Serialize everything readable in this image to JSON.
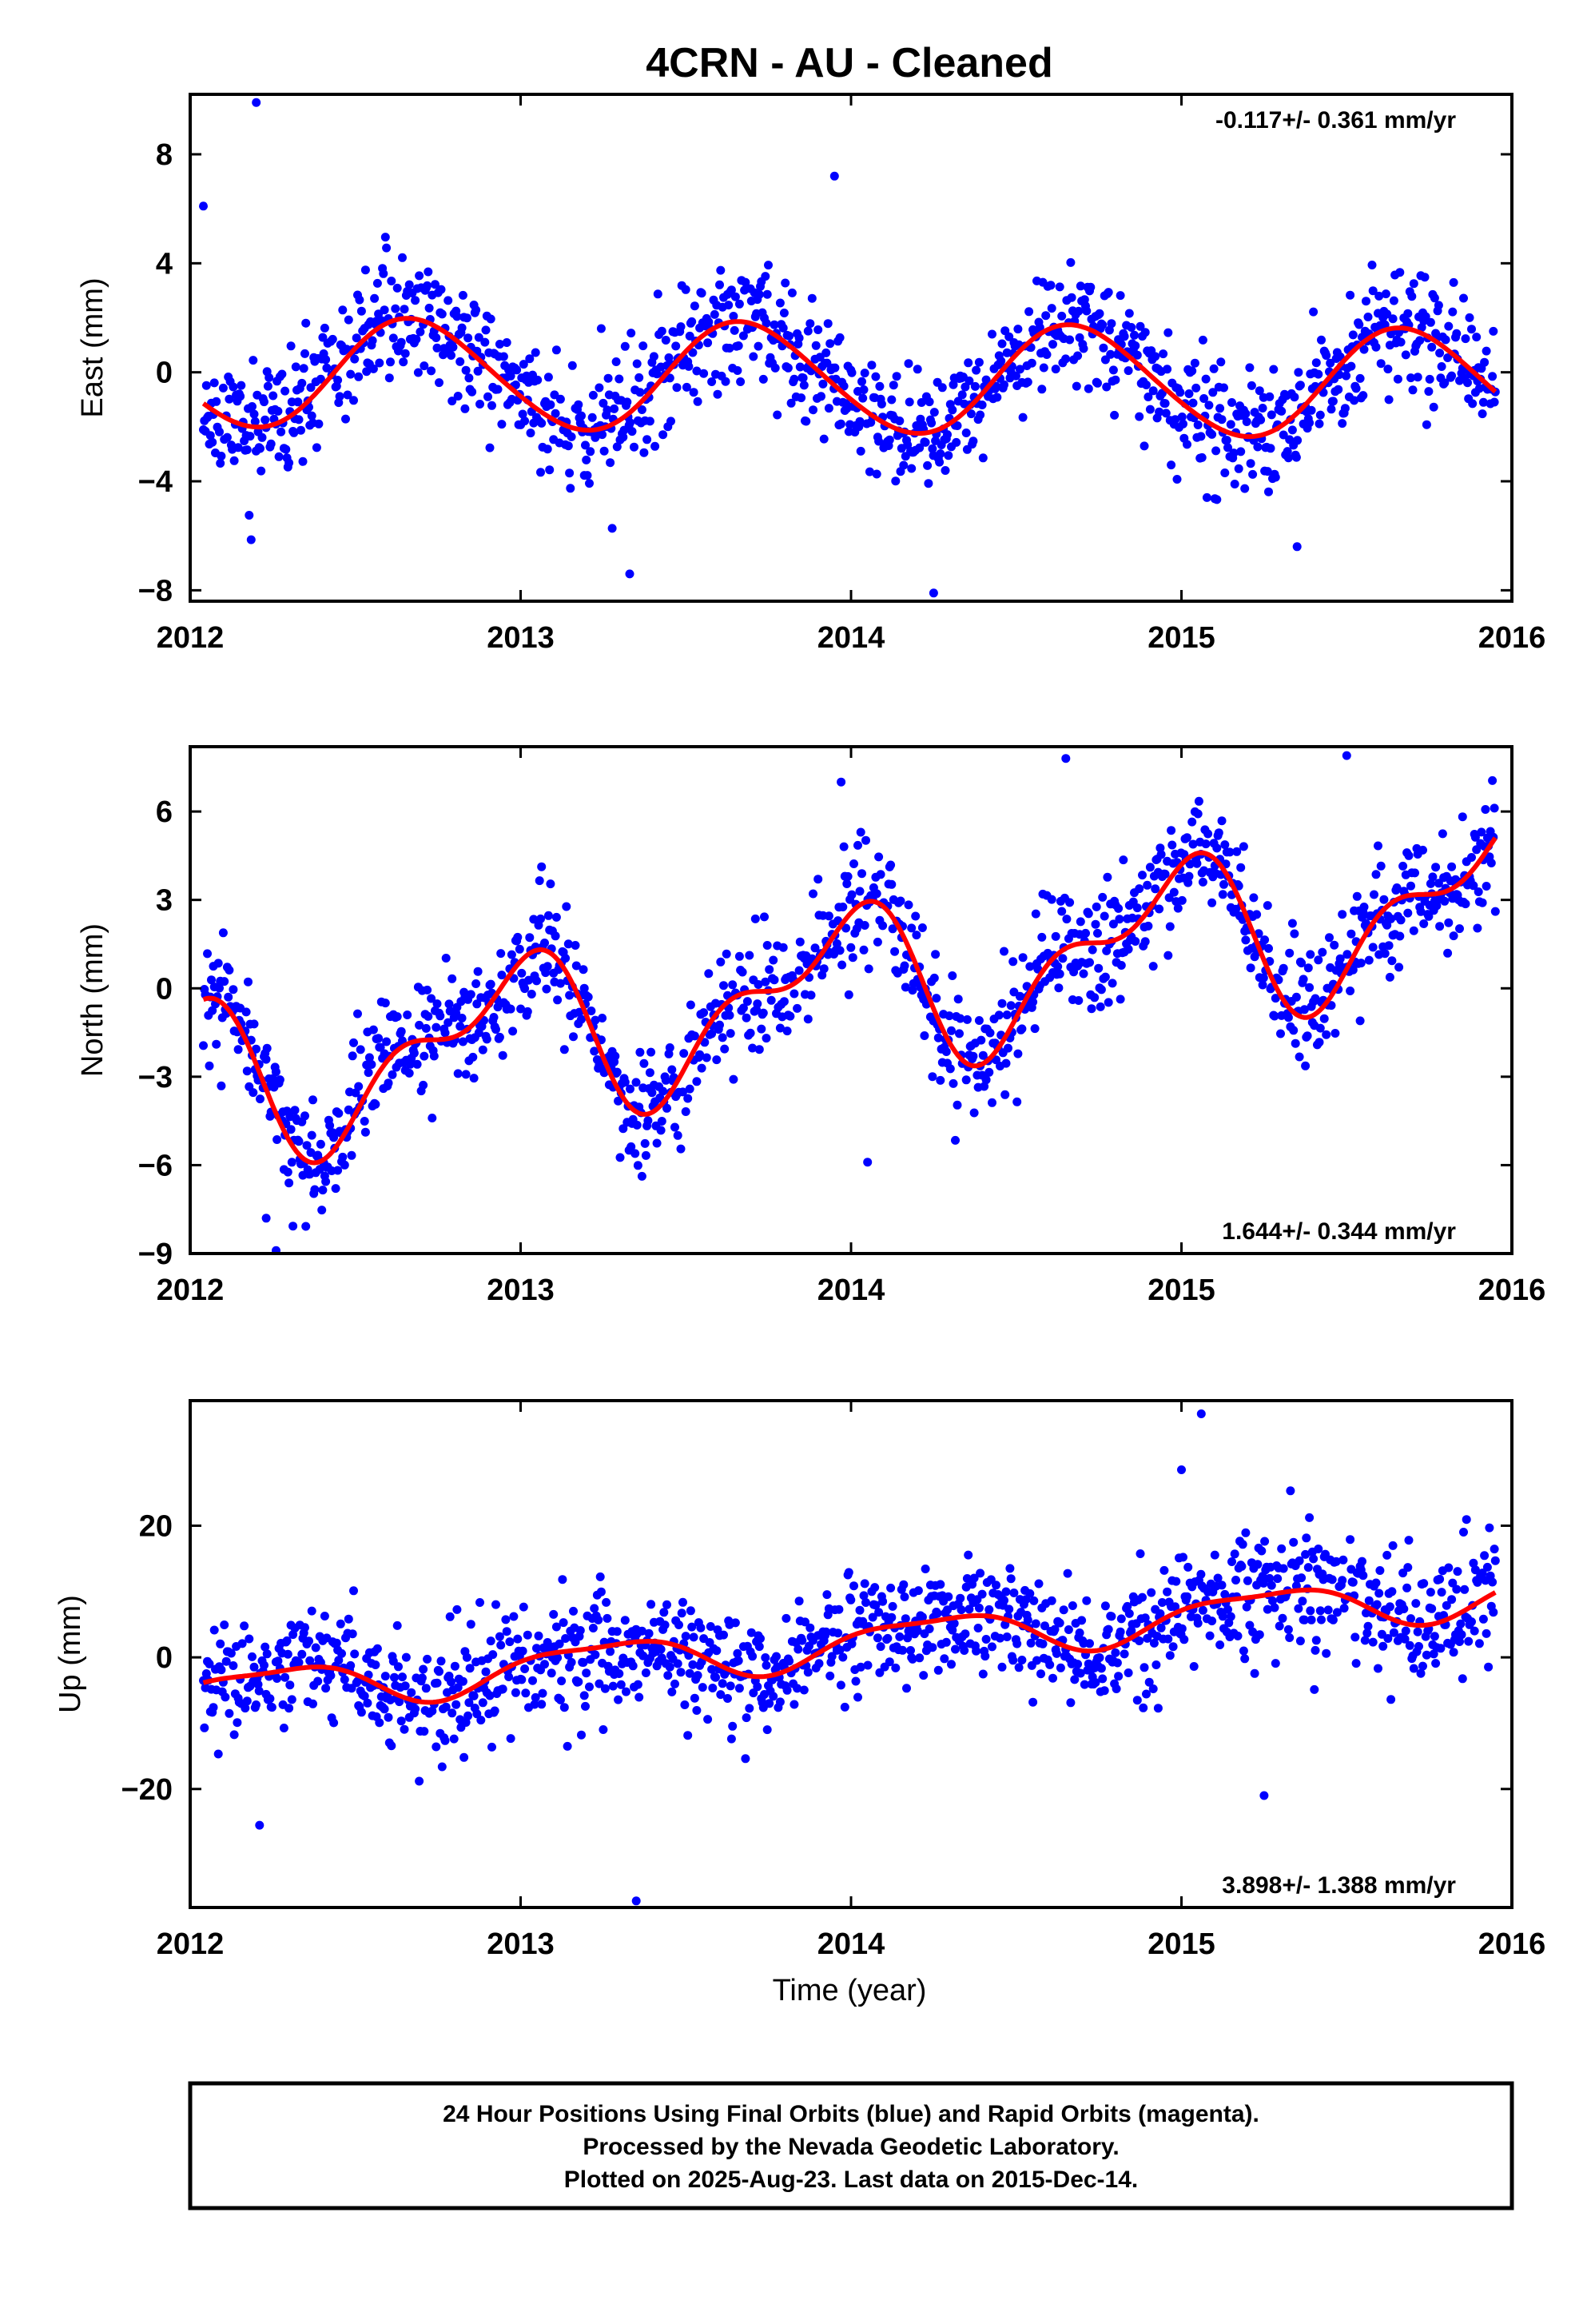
{
  "title": "4CRN  - AU - Cleaned",
  "xlabel": "Time (year)",
  "footer": {
    "line1": "24 Hour Positions Using Final Orbits (blue) and Rapid Orbits (magenta).",
    "line2": "Processed by the Nevada Geodetic Laboratory.",
    "line3": "Plotted on 2025-Aug-23. Last data on 2015-Dec-14."
  },
  "colors": {
    "points": "#0000ff",
    "fit": "#ff0000",
    "frame": "#000000"
  },
  "chart_data": [
    {
      "type": "scatter",
      "ylabel": "East (mm)",
      "rate": "-0.117+/- 0.361 mm/yr",
      "xlim": [
        2012,
        2016
      ],
      "ylim": [
        -8.4,
        10.2
      ],
      "yticks": [
        -8,
        -4,
        0,
        4,
        8
      ],
      "ytick_labels": [
        "−8",
        "−4",
        "0",
        "4",
        "8"
      ],
      "xticks": [
        2012,
        2013,
        2014,
        2015,
        2016
      ],
      "xtick_labels": [
        "2012",
        "2013",
        "2014",
        "2015",
        "2016"
      ],
      "data_range": [
        2012.04,
        2015.95
      ],
      "fit": {
        "offset": 0.0,
        "trend": -0.117,
        "amp_annual": 2.0,
        "phase_annual": 0.57,
        "amp_semi": 0.15,
        "phase_semi": 0.1
      },
      "scatter": {
        "noise_sd": 1.1,
        "point_count": 1300,
        "seed": 11
      },
      "outliers": [
        [
          2012.2,
          9.9
        ],
        [
          2013.95,
          7.2
        ],
        [
          2014.25,
          -8.1
        ],
        [
          2013.33,
          -7.4
        ],
        [
          2012.04,
          6.1
        ],
        [
          2015.35,
          -6.4
        ]
      ],
      "series": [
        {
          "name": "",
          "role": "daily positions"
        },
        {
          "name": "",
          "role": "model fit"
        }
      ]
    },
    {
      "type": "scatter",
      "ylabel": "North (mm)",
      "rate": "1.644+/- 0.344 mm/yr",
      "xlim": [
        2012,
        2016
      ],
      "ylim": [
        -9.0,
        8.2
      ],
      "yticks": [
        -9,
        -6,
        -3,
        0,
        3,
        6
      ],
      "ytick_labels": [
        "−9",
        "−6",
        "−3",
        "0",
        "3",
        "6"
      ],
      "xticks": [
        2012,
        2013,
        2014,
        2015,
        2016
      ],
      "xtick_labels": [
        "2012",
        "2013",
        "2014",
        "2015",
        "2016"
      ],
      "data_range": [
        2012.04,
        2015.95
      ],
      "fit": {
        "offset": -3.3,
        "trend": 1.644,
        "amp_annual": 2.3,
        "phase_annual": 0.3,
        "amp_semi": 1.25,
        "phase_semi": 0.05
      },
      "scatter": {
        "noise_sd": 1.0,
        "point_count": 1300,
        "seed": 23
      },
      "outliers": [
        [
          2012.26,
          -8.9
        ],
        [
          2012.23,
          -7.8
        ],
        [
          2013.97,
          7.0
        ],
        [
          2014.05,
          -5.9
        ],
        [
          2015.5,
          7.9
        ],
        [
          2014.65,
          7.8
        ]
      ],
      "series": [
        {
          "name": "",
          "role": "daily positions"
        },
        {
          "name": "",
          "role": "model fit"
        }
      ]
    },
    {
      "type": "scatter",
      "ylabel": "Up (mm)",
      "rate": "3.898+/- 1.388 mm/yr",
      "xlim": [
        2012,
        2016
      ],
      "ylim": [
        -38.0,
        39.0
      ],
      "yticks": [
        -20,
        0,
        20
      ],
      "ytick_labels": [
        "−20",
        "0",
        "20"
      ],
      "xticks": [
        2012,
        2013,
        2014,
        2015,
        2016
      ],
      "xtick_labels": [
        "2012",
        "2013",
        "2014",
        "2015",
        "2016"
      ],
      "data_range": [
        2012.04,
        2015.95
      ],
      "fit": {
        "offset": -5.5,
        "trend": 3.898,
        "amp_annual": 3.2,
        "phase_annual": 0.0,
        "amp_semi": 1.0,
        "phase_semi": 0.3
      },
      "scatter": {
        "noise_sd": 4.5,
        "point_count": 1300,
        "seed": 37
      },
      "outliers": [
        [
          2015.06,
          37.0
        ],
        [
          2013.35,
          -37.0
        ],
        [
          2012.21,
          -25.5
        ],
        [
          2015.25,
          -21.0
        ],
        [
          2015.0,
          28.5
        ]
      ],
      "series": [
        {
          "name": "",
          "role": "daily positions"
        },
        {
          "name": "",
          "role": "model fit"
        }
      ]
    }
  ]
}
